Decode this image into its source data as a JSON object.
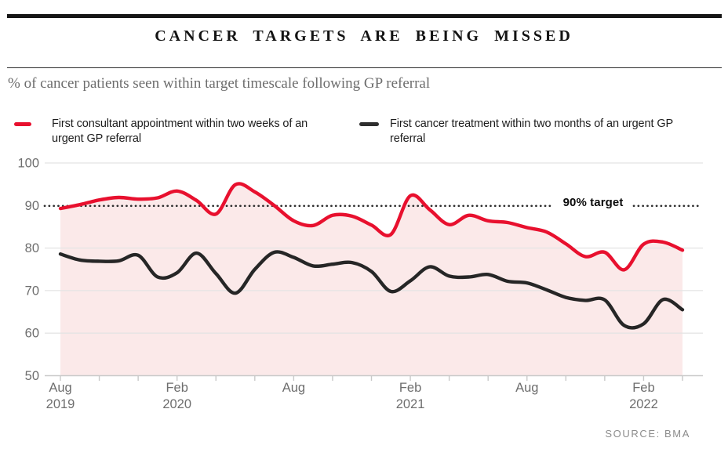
{
  "header": {
    "title": "CANCER TARGETS ARE BEING MISSED",
    "subtitle": "% of cancer patients seen within target timescale following GP referral"
  },
  "legend": [
    {
      "lines": [
        "First consultant appointment within two weeks of an",
        "urgent GP referral"
      ],
      "color": "#e8102e"
    },
    {
      "lines": [
        "First cancer treatment within two months of an urgent GP",
        "referral"
      ],
      "color": "#2e2e2e"
    }
  ],
  "source": "SOURCE: BMA",
  "chart_data": {
    "type": "line",
    "title": "CANCER TARGETS ARE BEING MISSED",
    "subtitle": "% of cancer patients seen within target timescale following GP referral",
    "x": [
      "Aug 2019",
      "Sep 2019",
      "Oct 2019",
      "Nov 2019",
      "Dec 2019",
      "Jan 2020",
      "Feb 2020",
      "Mar 2020",
      "Apr 2020",
      "May 2020",
      "Jun 2020",
      "Jul 2020",
      "Aug 2020",
      "Sep 2020",
      "Oct 2020",
      "Nov 2020",
      "Dec 2020",
      "Jan 2021",
      "Feb 2021",
      "Mar 2021",
      "Apr 2021",
      "May 2021",
      "Jun 2021",
      "Jul 2021",
      "Aug 2021",
      "Sep 2021",
      "Oct 2021",
      "Nov 2021",
      "Dec 2021",
      "Jan 2022",
      "Feb 2022",
      "Mar 2022",
      "Apr 2022"
    ],
    "series": [
      {
        "name": "First consultant appointment within two weeks of an urgent GP referral",
        "color": "#e8102e",
        "area_fill": "#fbe9e9",
        "values": [
          89.3,
          90.2,
          91.3,
          91.9,
          91.5,
          91.8,
          93.4,
          91.2,
          88.0,
          94.9,
          93.2,
          90.0,
          86.4,
          85.3,
          87.7,
          87.5,
          85.4,
          83.2,
          92.3,
          89.0,
          85.5,
          87.7,
          86.4,
          86.0,
          84.8,
          83.8,
          81.0,
          78.0,
          79.0,
          74.9,
          80.9,
          81.4,
          79.5
        ]
      },
      {
        "name": "First cancer treatment within two months of an urgent GP referral",
        "color": "#262626",
        "area_fill": null,
        "values": [
          78.6,
          77.2,
          76.9,
          77.0,
          78.3,
          73.2,
          74.2,
          78.8,
          74.0,
          69.4,
          75.0,
          79.0,
          77.8,
          75.8,
          76.2,
          76.6,
          74.5,
          69.8,
          72.3,
          75.6,
          73.4,
          73.2,
          73.8,
          72.2,
          71.8,
          70.2,
          68.4,
          67.7,
          67.8,
          61.8,
          62.2,
          67.9,
          65.5
        ]
      }
    ],
    "target": {
      "value": 90,
      "label": "90% target"
    },
    "ylim": [
      50,
      100
    ],
    "yticks": [
      100,
      90,
      80,
      70,
      60,
      50
    ],
    "grid_values": [
      100,
      80,
      70,
      60
    ],
    "x_tick_every": 2,
    "x_axis_labels": [
      {
        "index": 0,
        "line1": "Aug",
        "line2": "2019"
      },
      {
        "index": 6,
        "line1": "Feb",
        "line2": "2020"
      },
      {
        "index": 12,
        "line1": "Aug"
      },
      {
        "index": 18,
        "line1": "Feb",
        "line2": "2021"
      },
      {
        "index": 24,
        "line1": "Aug"
      },
      {
        "index": 30,
        "line1": "Feb",
        "line2": "2022"
      }
    ],
    "legend_position": "top",
    "grid": "horizontal"
  }
}
